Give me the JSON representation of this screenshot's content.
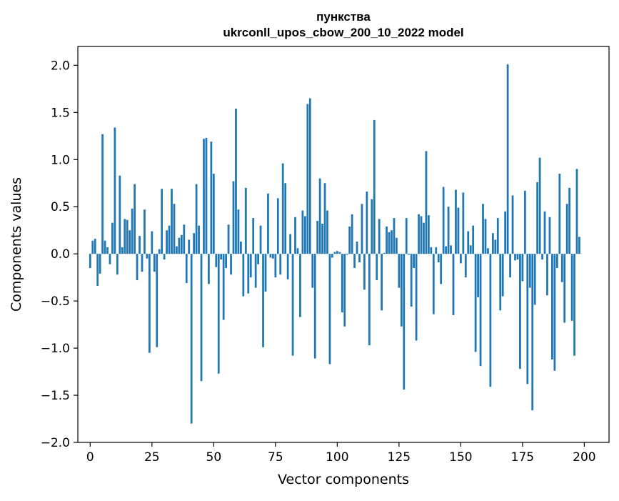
{
  "chart_data": {
    "type": "bar",
    "title": "пункства",
    "subtitle": "ukrconll_upos_cbow_200_10_2022 model",
    "xlabel": "Vector components",
    "ylabel": "Components values",
    "xlim": [
      -5,
      210
    ],
    "ylim": [
      -2.0,
      2.2
    ],
    "x_ticks": [
      0,
      25,
      50,
      75,
      100,
      125,
      150,
      175,
      200
    ],
    "y_ticks": [
      2.0,
      1.5,
      1.0,
      0.5,
      0.0,
      -0.5,
      -1.0,
      -1.5,
      -2.0
    ],
    "x_tick_labels": [
      "0",
      "25",
      "50",
      "75",
      "100",
      "125",
      "150",
      "175",
      "200"
    ],
    "y_tick_labels": [
      "2.0",
      "1.5",
      "1.0",
      "0.5",
      "0.0",
      "−0.5",
      "−1.0",
      "−1.5",
      "−2.0"
    ],
    "grid": false,
    "bar_color": "#1f77b4",
    "values": [
      -0.15,
      0.14,
      0.16,
      -0.34,
      -0.21,
      1.27,
      0.14,
      0.07,
      -0.11,
      0.33,
      1.34,
      -0.22,
      0.83,
      0.07,
      0.37,
      0.36,
      0.25,
      0.48,
      0.74,
      -0.28,
      0.19,
      -0.19,
      0.47,
      -0.05,
      -1.05,
      0.24,
      -0.19,
      -0.99,
      0.05,
      0.69,
      -0.06,
      0.25,
      0.3,
      0.69,
      0.53,
      0.08,
      0.17,
      0.2,
      0.31,
      -0.31,
      0.15,
      -1.8,
      0.22,
      0.74,
      0.3,
      -1.35,
      1.22,
      1.23,
      -0.32,
      1.19,
      0.85,
      -0.14,
      -1.27,
      -0.06,
      -0.7,
      -0.15,
      0.31,
      -0.22,
      0.77,
      1.54,
      0.47,
      0.13,
      -0.45,
      0.7,
      -0.42,
      -0.25,
      0.38,
      -0.36,
      -0.11,
      0.3,
      -0.99,
      -0.4,
      0.64,
      -0.04,
      -0.05,
      -0.25,
      0.59,
      -0.22,
      0.96,
      0.75,
      -0.27,
      0.21,
      -1.08,
      0.39,
      0.06,
      -0.67,
      0.46,
      0.4,
      1.59,
      1.65,
      -0.36,
      -1.11,
      0.35,
      0.8,
      0.32,
      0.75,
      0.46,
      -1.17,
      -0.04,
      0.02,
      0.03,
      0.02,
      -0.62,
      -0.77,
      -0.01,
      0.29,
      0.42,
      -0.15,
      0.13,
      -0.09,
      0.53,
      -0.38,
      0.66,
      -0.97,
      0.58,
      1.42,
      -0.28,
      0.37,
      -0.6,
      0.01,
      0.29,
      0.23,
      0.25,
      0.38,
      0.17,
      -0.36,
      -0.77,
      -1.44,
      0.38,
      -0.01,
      -0.56,
      -0.15,
      -0.92,
      0.42,
      0.4,
      0.33,
      1.09,
      0.41,
      0.07,
      -0.64,
      0.07,
      -0.09,
      -0.32,
      0.71,
      0.08,
      0.5,
      0.09,
      -0.65,
      0.68,
      0.49,
      -0.1,
      0.65,
      -0.25,
      0.24,
      0.09,
      0.3,
      -1.04,
      -0.46,
      -1.19,
      0.53,
      0.37,
      0.06,
      -1.41,
      0.22,
      0.15,
      0.38,
      -0.6,
      -0.45,
      0.45,
      2.01,
      -0.25,
      0.62,
      -0.07,
      -0.06,
      -1.22,
      -0.29,
      0.67,
      -1.38,
      -0.36,
      -1.66,
      -0.54,
      0.76,
      1.02,
      -0.06,
      0.45,
      -0.44,
      0.39,
      -1.12,
      -1.24,
      -0.15,
      0.85,
      -0.3,
      -0.73,
      0.53,
      0.7,
      -0.71,
      -1.08,
      0.9,
      0.18
    ]
  }
}
